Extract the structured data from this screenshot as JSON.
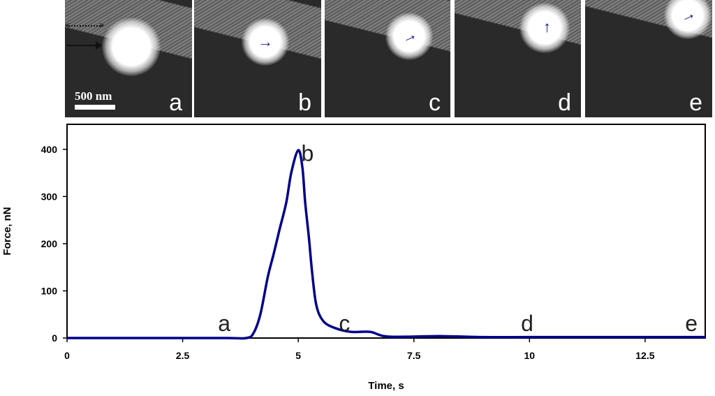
{
  "panels": [
    {
      "label": "a",
      "arrow": "none"
    },
    {
      "label": "b",
      "arrow": "right"
    },
    {
      "label": "c",
      "arrow": "up-right"
    },
    {
      "label": "d",
      "arrow": "up"
    },
    {
      "label": "e",
      "arrow": "up-right"
    }
  ],
  "scale_bar": "500 nm",
  "colors": {
    "curve": "#00008B",
    "arrow": "#1a1a8c"
  },
  "chart_data": {
    "type": "line",
    "title": "",
    "xlabel": "Time, s",
    "ylabel": "Force, nN",
    "xlim": [
      0,
      13.8
    ],
    "ylim": [
      0,
      453
    ],
    "xticks": [
      "0",
      "2.5",
      "5",
      "7.5",
      "10",
      "12.5"
    ],
    "yticks": [
      "0",
      "100",
      "200",
      "300",
      "400"
    ],
    "grid": false,
    "series": [
      {
        "name": "Force",
        "x": [
          0,
          1,
          2,
          3,
          3.5,
          3.88,
          4.03,
          4.18,
          4.34,
          4.47,
          4.59,
          4.74,
          4.85,
          5.0,
          5.09,
          5.15,
          5.23,
          5.3,
          5.39,
          5.54,
          5.8,
          6.15,
          6.56,
          6.96,
          8.07,
          9,
          10,
          11,
          12,
          13,
          13.8
        ],
        "y": [
          0,
          0,
          0,
          0,
          0,
          0,
          10,
          50,
          129,
          179,
          228,
          287,
          351,
          398,
          361,
          287,
          213,
          139,
          70,
          36,
          21,
          13,
          13,
          3,
          4,
          2,
          2,
          2,
          2,
          2,
          2
        ]
      }
    ],
    "annotations": [
      {
        "text": "a",
        "x": 3.4,
        "y": 15
      },
      {
        "text": "b",
        "x": 5.2,
        "y": 375
      },
      {
        "text": "c",
        "x": 6.0,
        "y": 15
      },
      {
        "text": "d",
        "x": 9.95,
        "y": 15
      },
      {
        "text": "e",
        "x": 13.5,
        "y": 15
      }
    ]
  }
}
